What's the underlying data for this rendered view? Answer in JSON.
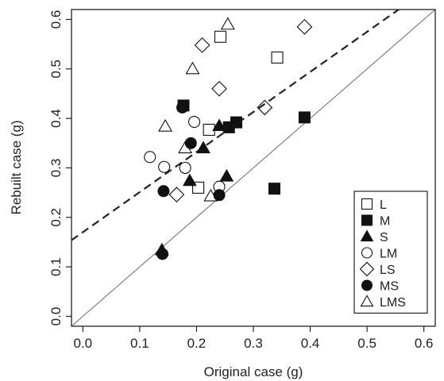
{
  "chart_data": {
    "type": "scatter",
    "title": "",
    "xlabel": "Original case (g)",
    "ylabel": "Rebuilt case (g)",
    "xlim": [
      -0.02,
      0.62
    ],
    "ylim": [
      -0.02,
      0.62
    ],
    "xticks": [
      "0.0",
      "0.1",
      "0.2",
      "0.3",
      "0.4",
      "0.5",
      "0.6"
    ],
    "yticks": [
      "0.0",
      "0.1",
      "0.2",
      "0.3",
      "0.4",
      "0.5",
      "0.6"
    ],
    "grid": false,
    "legend_position": "bottom-right",
    "reference_lines": [
      {
        "style": "solid",
        "intercept": 0.0,
        "slope": 1.0
      },
      {
        "style": "dashed",
        "intercept": 0.17,
        "slope": 0.81
      }
    ],
    "series": [
      {
        "name": "L",
        "marker": "square-open",
        "points": [
          [
            0.203,
            0.26
          ],
          [
            0.222,
            0.377
          ],
          [
            0.242,
            0.565
          ],
          [
            0.342,
            0.523
          ]
        ]
      },
      {
        "name": "M",
        "marker": "square-filled",
        "points": [
          [
            0.177,
            0.426
          ],
          [
            0.257,
            0.382
          ],
          [
            0.27,
            0.392
          ],
          [
            0.337,
            0.258
          ],
          [
            0.39,
            0.402
          ]
        ]
      },
      {
        "name": "S",
        "marker": "triangle-filled",
        "points": [
          [
            0.139,
            0.134
          ],
          [
            0.188,
            0.274
          ],
          [
            0.212,
            0.34
          ],
          [
            0.24,
            0.385
          ],
          [
            0.253,
            0.283
          ]
        ]
      },
      {
        "name": "LM",
        "marker": "circle-open",
        "points": [
          [
            0.118,
            0.322
          ],
          [
            0.143,
            0.302
          ],
          [
            0.18,
            0.3
          ],
          [
            0.196,
            0.393
          ],
          [
            0.24,
            0.262
          ]
        ]
      },
      {
        "name": "LS",
        "marker": "diamond-open",
        "points": [
          [
            0.165,
            0.246
          ],
          [
            0.21,
            0.548
          ],
          [
            0.24,
            0.46
          ],
          [
            0.32,
            0.422
          ],
          [
            0.39,
            0.585
          ]
        ]
      },
      {
        "name": "MS",
        "marker": "circle-filled",
        "points": [
          [
            0.14,
            0.126
          ],
          [
            0.142,
            0.253
          ],
          [
            0.175,
            0.422
          ],
          [
            0.19,
            0.35
          ],
          [
            0.24,
            0.245
          ]
        ]
      },
      {
        "name": "LMS",
        "marker": "triangle-open",
        "points": [
          [
            0.145,
            0.384
          ],
          [
            0.18,
            0.34
          ],
          [
            0.193,
            0.5
          ],
          [
            0.225,
            0.243
          ],
          [
            0.255,
            0.59
          ]
        ]
      }
    ]
  }
}
